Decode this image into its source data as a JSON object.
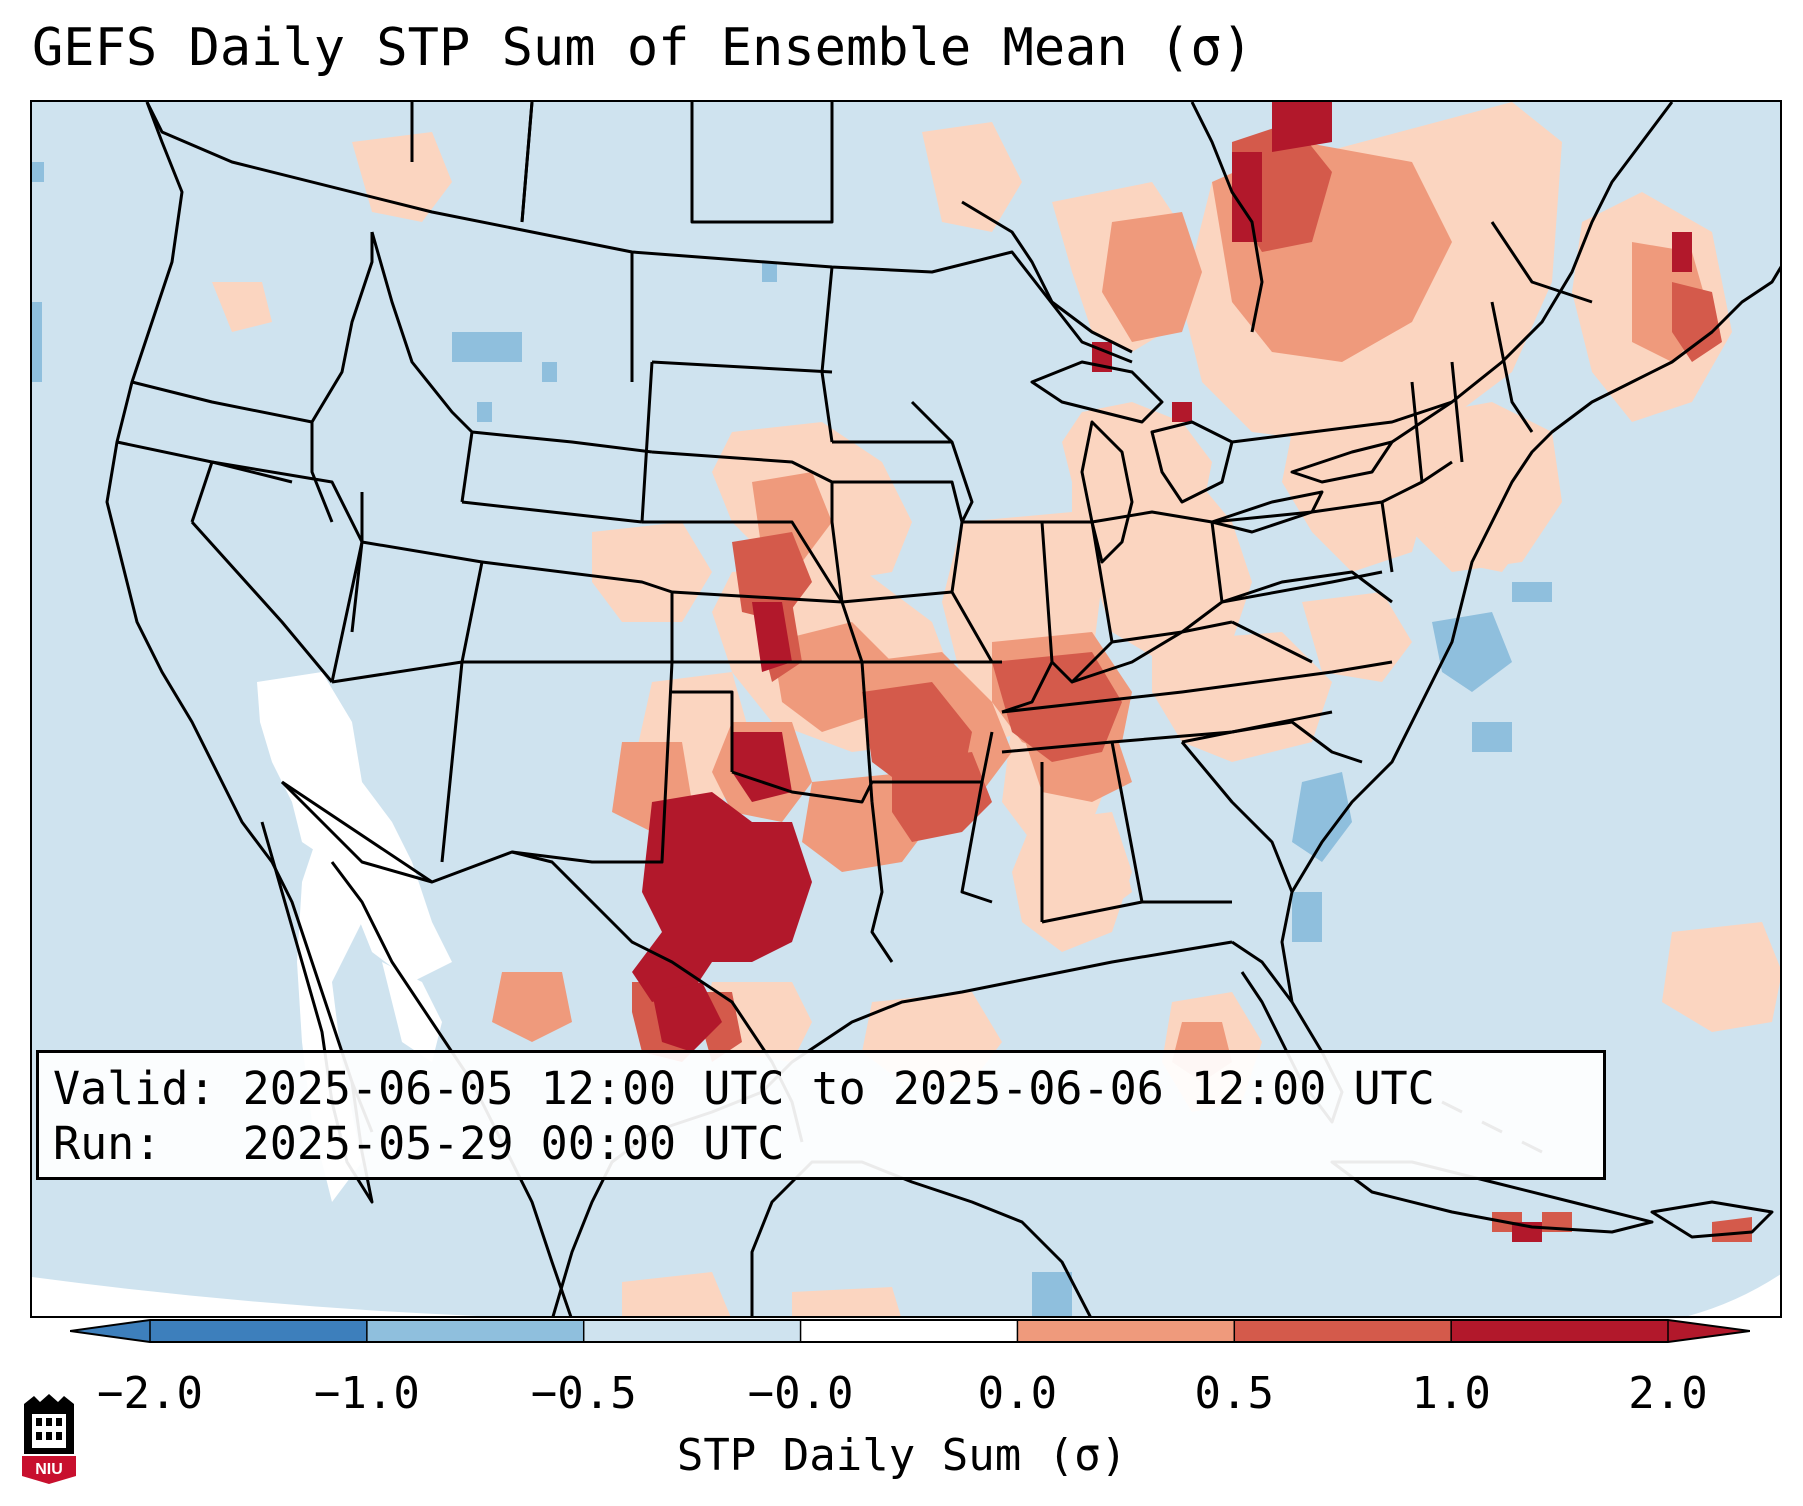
{
  "title": "GEFS Daily STP Sum of Ensemble Mean (σ)",
  "info": {
    "valid_label": "Valid:",
    "valid_value": "2025-06-05 12:00 UTC to 2025-06-06 12:00 UTC",
    "run_label": "Run:",
    "run_value": "2025-05-29 00:00 UTC"
  },
  "colorbar": {
    "label": "STP Daily Sum (σ)",
    "ticks": [
      "−2.0",
      "−1.0",
      "−0.5",
      "−0.0",
      "0.0",
      "0.5",
      "1.0",
      "2.0"
    ],
    "colors": [
      "#3d7fbc",
      "#8fbfdd",
      "#cfe3ef",
      "#ffffff",
      "#fbd5c0",
      "#ef9a7c",
      "#d45a4b",
      "#b2182b"
    ]
  },
  "logo": {
    "text": "NIU",
    "icon": "niu-logo-icon"
  },
  "map_colors": {
    "ocean": "#cfe3ef",
    "neutral_white": "#ffffff",
    "light_positive": "#fbd5c0",
    "medium_positive": "#ef9a7c",
    "strong_positive": "#d45a4b",
    "extreme_positive": "#b2182b",
    "light_negative": "#8fbfdd"
  }
}
